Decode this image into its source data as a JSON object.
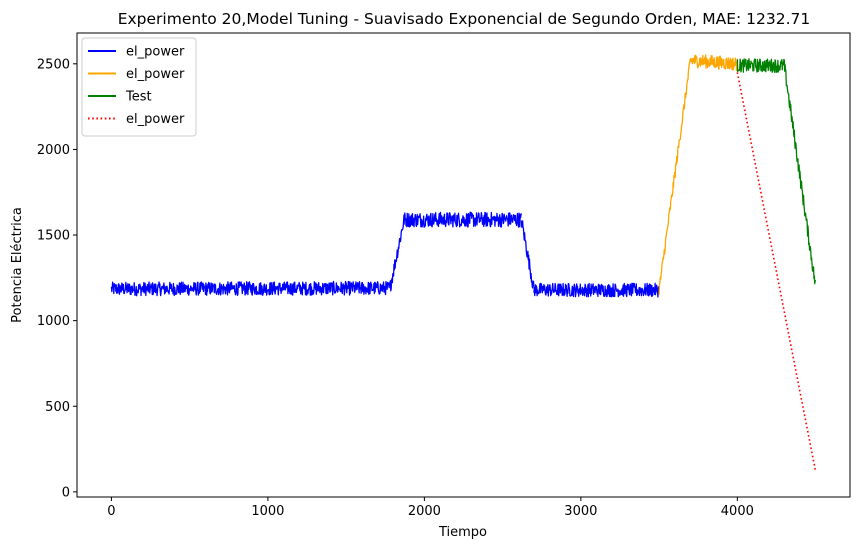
{
  "chart_data": {
    "type": "line",
    "title": "Experimento 20,Model Tuning - Suavisado Exponencial de Segundo Orden, MAE: 1232.71",
    "xlabel": "Tiempo",
    "ylabel": "Potencia Eléctrica",
    "xlim": [
      -220,
      4720
    ],
    "ylim": [
      -30,
      2680
    ],
    "xticks": [
      0,
      1000,
      2000,
      3000,
      4000
    ],
    "yticks": [
      0,
      500,
      1000,
      1500,
      2000,
      2500
    ],
    "grid": false,
    "legend_position": "top-left",
    "series": [
      {
        "name": "el_power",
        "color": "#0000ff",
        "style": "solid",
        "kind": "noisy-band",
        "segments": [
          {
            "x": [
              0,
              1780
            ],
            "center": [
              1185,
              1190
            ],
            "band": 50
          },
          {
            "x": [
              1780,
              1870
            ],
            "center": [
              1190,
              1590
            ],
            "band": 50
          },
          {
            "x": [
              1870,
              2620
            ],
            "center": [
              1590,
              1590
            ],
            "band": 55
          },
          {
            "x": [
              2620,
              2700
            ],
            "center": [
              1590,
              1180
            ],
            "band": 50
          },
          {
            "x": [
              2700,
              3500
            ],
            "center": [
              1180,
              1178
            ],
            "band": 50
          }
        ]
      },
      {
        "name": "el_power",
        "color": "#ffa500",
        "style": "solid",
        "kind": "noisy-band",
        "segments": [
          {
            "x": [
              3500,
              3700
            ],
            "center": [
              1180,
              2520
            ],
            "band": 40
          },
          {
            "x": [
              3700,
              4000
            ],
            "center": [
              2520,
              2500
            ],
            "band": 50
          }
        ]
      },
      {
        "name": "Test",
        "color": "#008000",
        "style": "solid",
        "kind": "noisy-band",
        "segments": [
          {
            "x": [
              4000,
              4300
            ],
            "center": [
              2490,
              2490
            ],
            "band": 50
          },
          {
            "x": [
              4300,
              4500
            ],
            "center": [
              2490,
              1200
            ],
            "band": 50
          }
        ]
      },
      {
        "name": "el_power",
        "color": "#ff0000",
        "style": "dotted",
        "kind": "line",
        "x": [
          4000,
          4500
        ],
        "y": [
          2450,
          120
        ]
      }
    ]
  }
}
